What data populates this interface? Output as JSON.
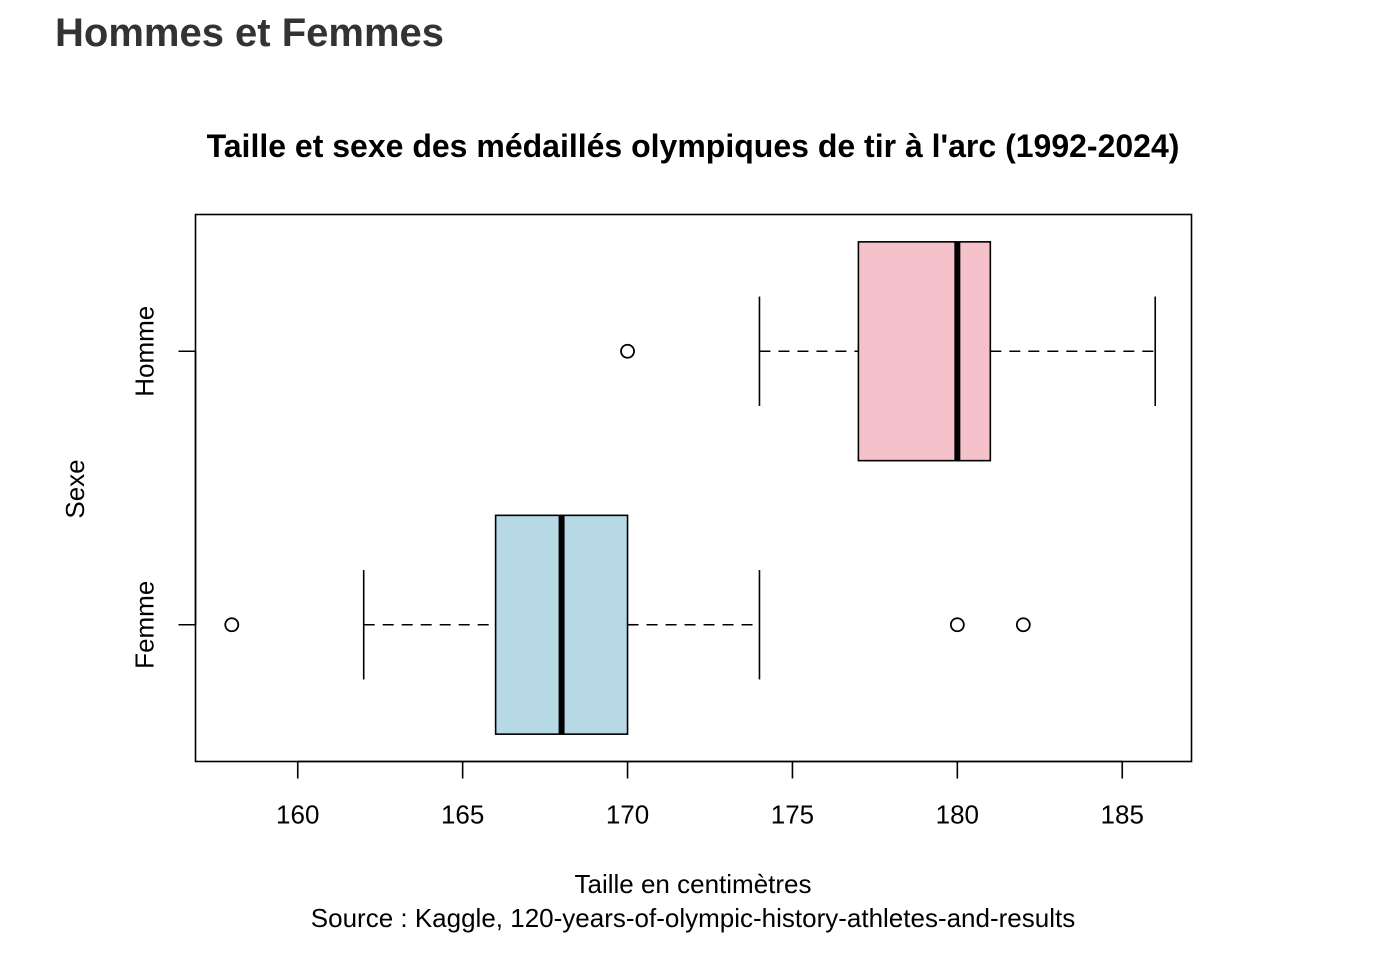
{
  "page": {
    "heading": "Hommes et Femmes"
  },
  "chart_data": {
    "type": "boxplot",
    "orientation": "horizontal",
    "title": "Taille et sexe des médaillés olympiques de tir à l'arc (1992-2024)",
    "xlabel": "Taille en centimètres",
    "ylabel": "Sexe",
    "caption": "Source : Kaggle, 120-years-of-olympic-history-athletes-and-results",
    "xlim": [
      156.9,
      187.1
    ],
    "xticks": [
      160,
      165,
      170,
      175,
      180,
      185
    ],
    "categories": [
      "Femme",
      "Homme"
    ],
    "groups": [
      {
        "name": "Femme",
        "color": "#b7d9e5",
        "whisker_low": 162,
        "q1": 166,
        "median": 168,
        "q3": 170,
        "whisker_high": 174,
        "outliers": [
          158,
          180,
          182
        ]
      },
      {
        "name": "Homme",
        "color": "#f5c2cc",
        "whisker_low": 174,
        "q1": 177,
        "median": 180,
        "q3": 181,
        "whisker_high": 186,
        "outliers": [
          170
        ]
      }
    ],
    "grid": false,
    "legend": "none"
  }
}
